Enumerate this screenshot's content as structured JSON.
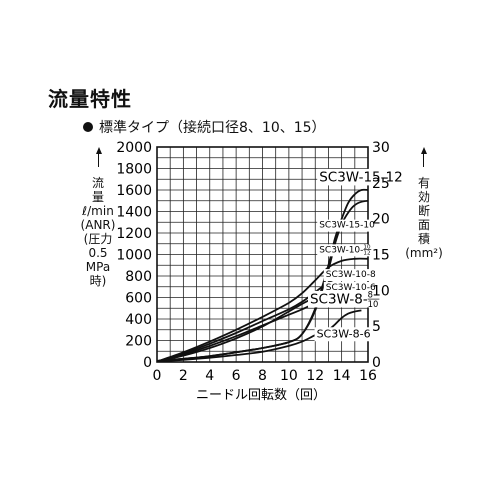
{
  "title": "流量特性",
  "subtitle": "標準タイプ（接続口径8、10、15）",
  "chart_data": {
    "type": "line",
    "xlabel": "ニードル回転数（回）",
    "ylabel_left": [
      "流",
      "量",
      "ℓ/min",
      "(ANR)",
      "(圧力",
      "0.5",
      "MPa",
      "時)"
    ],
    "ylabel_right": [
      "有",
      "効",
      "断",
      "面",
      "積",
      "(mm²)"
    ],
    "xlim": [
      0,
      16
    ],
    "ylim": [
      0,
      2000
    ],
    "ylim_right": [
      0,
      30
    ],
    "x_ticks": [
      "0",
      "2",
      "4",
      "6",
      "8",
      "10",
      "12",
      "14",
      "16"
    ],
    "y_ticks": [
      "0",
      "200",
      "400",
      "600",
      "800",
      "1000",
      "1200",
      "1400",
      "1600",
      "1800",
      "2000"
    ],
    "y2_ticks": [
      "0",
      "5",
      "10",
      "15",
      "20",
      "25",
      "30"
    ],
    "grid": true,
    "series": [
      {
        "name": "SC3W-15-12",
        "points": [
          [
            0,
            10
          ],
          [
            2,
            30
          ],
          [
            4,
            55
          ],
          [
            6,
            90
          ],
          [
            8,
            130
          ],
          [
            10,
            185
          ],
          [
            11,
            260
          ],
          [
            12,
            500
          ],
          [
            13,
            900
          ],
          [
            13.5,
            1150
          ],
          [
            14,
            1330
          ],
          [
            14.5,
            1480
          ],
          [
            15,
            1560
          ],
          [
            15.5,
            1600
          ],
          [
            16,
            1600
          ]
        ]
      },
      {
        "name": "SC3W-15-10",
        "points": [
          [
            0,
            10
          ],
          [
            2,
            30
          ],
          [
            4,
            55
          ],
          [
            6,
            90
          ],
          [
            8,
            130
          ],
          [
            10,
            185
          ],
          [
            11,
            260
          ],
          [
            12,
            480
          ],
          [
            13,
            860
          ],
          [
            13.5,
            1100
          ],
          [
            14,
            1280
          ],
          [
            14.5,
            1390
          ],
          [
            15,
            1460
          ],
          [
            15.5,
            1490
          ],
          [
            16,
            1500
          ]
        ]
      },
      {
        "name": "SC3W-10-10/12",
        "points": [
          [
            0,
            5
          ],
          [
            2,
            90
          ],
          [
            4,
            190
          ],
          [
            6,
            300
          ],
          [
            8,
            420
          ],
          [
            10,
            550
          ],
          [
            11,
            640
          ],
          [
            12,
            760
          ],
          [
            13,
            880
          ],
          [
            14,
            940
          ],
          [
            15,
            960
          ],
          [
            16,
            960
          ]
        ]
      },
      {
        "name": "SC3W-10-8",
        "points": [
          [
            0,
            5
          ],
          [
            2,
            80
          ],
          [
            4,
            170
          ],
          [
            6,
            270
          ],
          [
            8,
            380
          ],
          [
            10,
            490
          ],
          [
            11,
            560
          ],
          [
            12,
            650
          ],
          [
            13,
            740
          ],
          [
            14,
            790
          ],
          [
            15,
            810
          ],
          [
            16,
            820
          ]
        ]
      },
      {
        "name": "SC3W-10-6",
        "points": [
          [
            0,
            5
          ],
          [
            2,
            70
          ],
          [
            4,
            150
          ],
          [
            6,
            240
          ],
          [
            8,
            340
          ],
          [
            10,
            440
          ],
          [
            11,
            490
          ],
          [
            12,
            550
          ],
          [
            13,
            620
          ],
          [
            14,
            660
          ],
          [
            15,
            680
          ],
          [
            16,
            690
          ]
        ]
      },
      {
        "name": "SC3W-8-8/10",
        "points": [
          [
            0,
            5
          ],
          [
            2,
            60
          ],
          [
            4,
            130
          ],
          [
            6,
            220
          ],
          [
            8,
            330
          ],
          [
            10,
            470
          ],
          [
            11,
            540
          ],
          [
            12,
            600
          ],
          [
            13,
            630
          ],
          [
            14,
            650
          ],
          [
            15,
            660
          ],
          [
            15.5,
            660
          ]
        ]
      },
      {
        "name": "SC3W-8-6",
        "points": [
          [
            0,
            5
          ],
          [
            2,
            20
          ],
          [
            4,
            40
          ],
          [
            6,
            65
          ],
          [
            8,
            95
          ],
          [
            10,
            150
          ],
          [
            11,
            190
          ],
          [
            12,
            250
          ],
          [
            13,
            300
          ],
          [
            13.5,
            350
          ],
          [
            14,
            410
          ],
          [
            14.5,
            450
          ],
          [
            15,
            470
          ],
          [
            15.5,
            480
          ]
        ]
      }
    ],
    "annotations": [
      {
        "text": "SC3W-15-12",
        "size": "large",
        "at": [
          12.3,
          1680
        ]
      },
      {
        "text": "SC3W-15-10",
        "size": "small",
        "at": [
          12.3,
          1250
        ]
      },
      {
        "text": "SC3W-10-",
        "frac_top": "10",
        "frac_bottom": "12",
        "size": "small",
        "at": [
          12.3,
          1020
        ]
      },
      {
        "text": "SC3W-10-8",
        "size": "small",
        "at": [
          12.8,
          790
        ]
      },
      {
        "text": "SC3W-10-6",
        "size": "small",
        "at": [
          12.8,
          670
        ]
      },
      {
        "text": "SC3W-8-",
        "frac_top": "8",
        "frac_bottom": "10",
        "size": "large",
        "at": [
          11.6,
          545
        ]
      },
      {
        "text": "SC3W-8-6",
        "size": "medium",
        "at": [
          12.1,
          230
        ]
      }
    ]
  }
}
